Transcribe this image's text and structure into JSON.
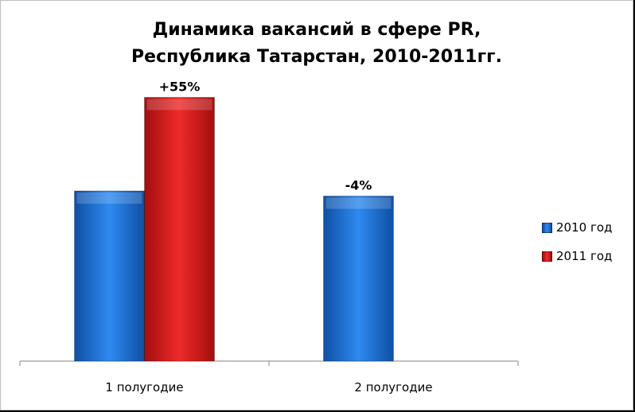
{
  "chart_data": {
    "type": "bar",
    "title_lines": [
      "Динамика вакансий в сфере PR,",
      "Республика Татарстан, 2010-2011гг."
    ],
    "categories": [
      "1 полугодие",
      "2 полугодие"
    ],
    "series": [
      {
        "name": "2010 год",
        "values": [
          100,
          97
        ],
        "color": "#1a6fd1"
      },
      {
        "name": "2011 год",
        "values": [
          155,
          null
        ],
        "color": "#d41a1a"
      }
    ],
    "data_labels": [
      {
        "series": 1,
        "category": 0,
        "text": "+55%"
      },
      {
        "series": 0,
        "category": 1,
        "text": "-4%"
      }
    ],
    "ylim": [
      0,
      165
    ],
    "grid": false,
    "legend_position": "right"
  }
}
